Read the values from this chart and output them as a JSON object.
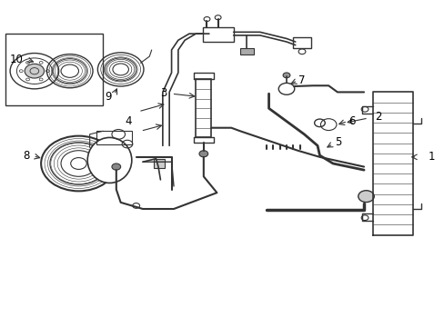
{
  "title": "",
  "bg_color": "#ffffff",
  "line_color": "#333333",
  "label_color": "#000000",
  "figsize": [
    4.89,
    3.6
  ],
  "dpi": 100
}
